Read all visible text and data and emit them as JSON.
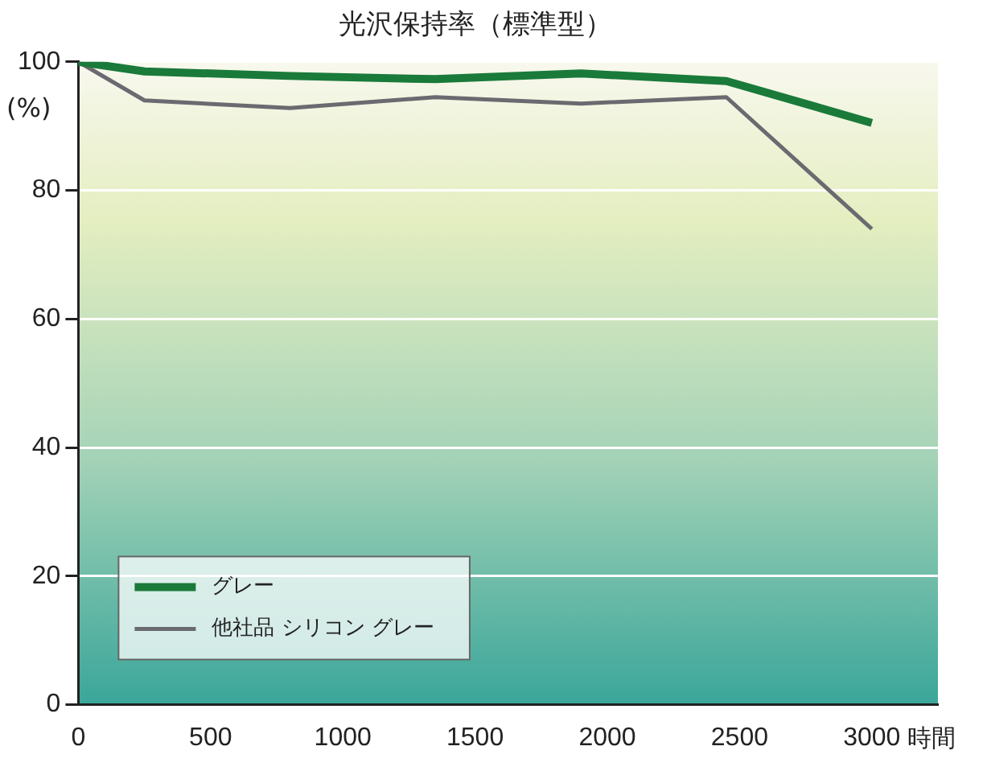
{
  "chart_data": {
    "type": "line",
    "title": "光沢保持率（標準型）",
    "xlabel": "時間",
    "ylabel": "(%)",
    "x": [
      0,
      250,
      800,
      1350,
      1900,
      2450,
      3000
    ],
    "series": [
      {
        "name": "グレー",
        "color": "#1a7a3a",
        "values": [
          100,
          98.5,
          97.8,
          97.3,
          98.2,
          97,
          90.5
        ]
      },
      {
        "name": "他社品 シリコン グレー",
        "color": "#6a6a70",
        "values": [
          100,
          94,
          92.8,
          94.5,
          93.5,
          94.5,
          74
        ]
      }
    ],
    "xlim": [
      0,
      3250
    ],
    "xticks": [
      0,
      500,
      1000,
      1500,
      2000,
      2500,
      3000
    ],
    "ylim": [
      0,
      100
    ],
    "yticks": [
      0,
      20,
      40,
      60,
      80,
      100
    ],
    "grid": "y",
    "legend": "bottom left",
    "marker": "none",
    "line_style": "solid"
  }
}
